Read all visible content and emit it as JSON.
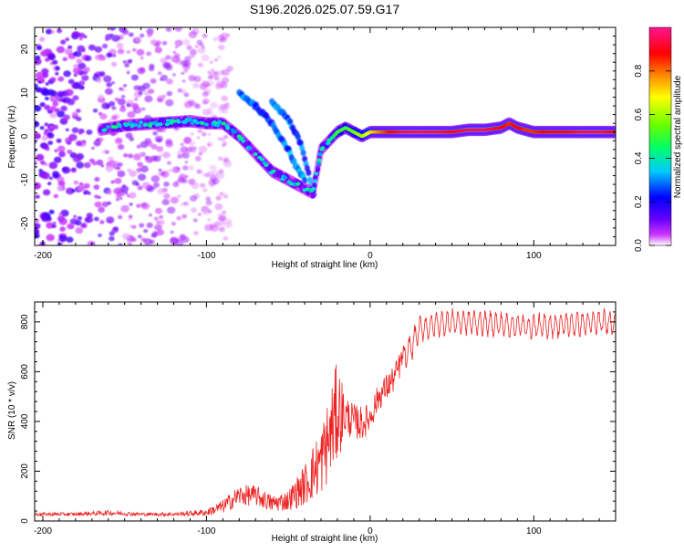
{
  "title": "S196.2026.025.07.59.G17",
  "chart_data": [
    {
      "type": "heatmap",
      "title": "S196.2026.025.07.59.G17",
      "xlabel": "Height of straight line (km)",
      "ylabel": "Frequency (Hz)",
      "xlim": [
        -205,
        150
      ],
      "ylim": [
        -25,
        25
      ],
      "xticks": [
        -200,
        -100,
        0,
        100
      ],
      "yticks": [
        -20,
        -10,
        0,
        10,
        20
      ],
      "colorbar": {
        "label": "Normalized spectral amplitude",
        "range": [
          0,
          1
        ],
        "ticks": [
          "0.0",
          "0.2",
          "0.4",
          "0.6",
          "0.8"
        ],
        "colors": [
          "#ffffff",
          "#cc33ff",
          "#6600ff",
          "#0000ff",
          "#00ccff",
          "#00ff66",
          "#66ff00",
          "#ffff00",
          "#ff8800",
          "#ff0000",
          "#ff1493"
        ]
      },
      "ridge": {
        "x": [
          -165,
          -150,
          -130,
          -110,
          -100,
          -90,
          -80,
          -70,
          -60,
          -50,
          -40,
          -35,
          -30,
          -25,
          -20,
          -15,
          -10,
          -5,
          0,
          10,
          20,
          30,
          40,
          50,
          60,
          70,
          80,
          85,
          90,
          95,
          100,
          110,
          120,
          130,
          140,
          150
        ],
        "y": [
          1.5,
          2.5,
          3,
          3.5,
          3,
          3,
          0,
          -4,
          -8,
          -10,
          -12,
          -13,
          -3,
          -1,
          1,
          2,
          1,
          0,
          1,
          1,
          1,
          1,
          1,
          1,
          1.5,
          1.5,
          2,
          3,
          2,
          1.5,
          1,
          1,
          1,
          1,
          1,
          1
        ],
        "amplitude": [
          0.3,
          0.3,
          0.35,
          0.35,
          0.35,
          0.35,
          0.3,
          0.3,
          0.35,
          0.3,
          0.3,
          0.3,
          0.35,
          0.4,
          0.5,
          0.5,
          0.55,
          0.6,
          0.7,
          0.85,
          0.95,
          0.95,
          0.95,
          0.9,
          0.95,
          0.95,
          0.9,
          0.85,
          0.9,
          0.85,
          0.85,
          0.9,
          0.9,
          0.95,
          0.95,
          0.9
        ]
      },
      "secondary_ridges": [
        {
          "x": [
            -80,
            -70,
            -60,
            -55,
            -50,
            -45,
            -40
          ],
          "y": [
            10,
            7,
            3,
            0,
            -3,
            -7,
            -10
          ],
          "amplitude": 0.3
        },
        {
          "x": [
            -60,
            -50,
            -42,
            -38,
            -34
          ],
          "y": [
            8,
            4,
            -2,
            -8,
            -14
          ],
          "amplitude": 0.3
        }
      ],
      "noise_region": {
        "x": [
          -205,
          -100
        ],
        "y": [
          -25,
          25
        ]
      }
    },
    {
      "type": "line",
      "xlabel": "Height of straight line (km)",
      "ylabel": "SNR (10 * v/v)",
      "xlim": [
        -205,
        150
      ],
      "ylim": [
        0,
        880
      ],
      "xticks": [
        -200,
        -100,
        0,
        100
      ],
      "yticks": [
        0,
        200,
        400,
        600,
        800
      ],
      "series": [
        {
          "name": "SNR",
          "color": "#ee2222",
          "x": [
            -205,
            -180,
            -160,
            -140,
            -120,
            -100,
            -90,
            -80,
            -70,
            -60,
            -50,
            -40,
            -30,
            -25,
            -20,
            -15,
            -10,
            -5,
            0,
            5,
            10,
            15,
            20,
            25,
            30,
            40,
            50,
            60,
            80,
            100,
            120,
            150
          ],
          "y": [
            25,
            25,
            30,
            25,
            25,
            30,
            50,
            90,
            90,
            60,
            70,
            120,
            200,
            280,
            380,
            400,
            380,
            370,
            400,
            480,
            520,
            560,
            640,
            700,
            770,
            790,
            800,
            800,
            790,
            780,
            790,
            800
          ],
          "spread": [
            10,
            10,
            15,
            10,
            10,
            20,
            40,
            60,
            60,
            50,
            60,
            120,
            200,
            250,
            300,
            120,
            100,
            100,
            80,
            80,
            80,
            80,
            80,
            70,
            60,
            60,
            60,
            60,
            60,
            60,
            60,
            60
          ]
        }
      ]
    }
  ]
}
